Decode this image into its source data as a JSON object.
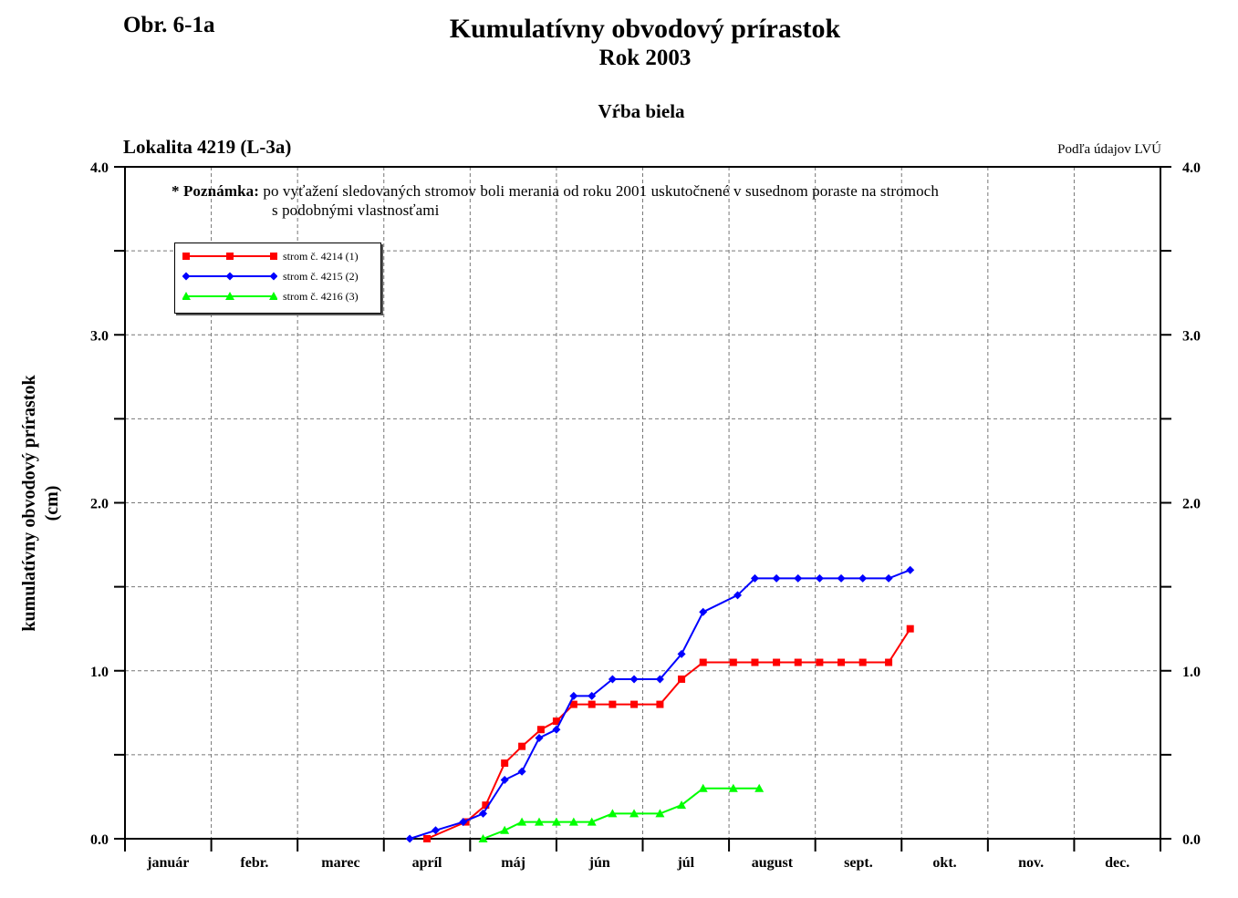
{
  "header": {
    "figure_label": "Obr. 6-1a",
    "title": "Kumulatívny obvodový prírastok",
    "subtitle": "Rok 2003",
    "species": "Vŕba biela",
    "location": "Lokalita 4219 (L-3a)",
    "source": "Podľa údajov LVÚ"
  },
  "note": {
    "head": "* Poznámka:",
    "line1": " po vyťažení sledovaných stromov boli merania od roku 2001 uskutočnené v susednom poraste na stromoch",
    "line2": "s podobnými vlastnosťami"
  },
  "chart_data": {
    "type": "line",
    "ylabel_line1": "kumulatívny obvodový prírastok",
    "ylabel_line2": "(cm)",
    "ylim": [
      0,
      4
    ],
    "y_ticks": [
      "0.0",
      "1.0",
      "2.0",
      "3.0",
      "4.0"
    ],
    "categories": [
      "január",
      "febr.",
      "marec",
      "apríl",
      "máj",
      "jún",
      "júl",
      "august",
      "sept.",
      "okt.",
      "nov.",
      "dec."
    ],
    "x_unit": "month index (1 = start of január, 13 = end of dec.)",
    "grid": true,
    "legend_position": "top-left",
    "series": [
      {
        "name": "strom č. 4214 (1)",
        "color": "#ff0000",
        "marker": "square",
        "points": [
          [
            4.5,
            0.0
          ],
          [
            4.95,
            0.1
          ],
          [
            5.18,
            0.2
          ],
          [
            5.4,
            0.45
          ],
          [
            5.6,
            0.55
          ],
          [
            5.82,
            0.65
          ],
          [
            6.0,
            0.7
          ],
          [
            6.2,
            0.8
          ],
          [
            6.41,
            0.8
          ],
          [
            6.65,
            0.8
          ],
          [
            6.9,
            0.8
          ],
          [
            7.2,
            0.8
          ],
          [
            7.45,
            0.95
          ],
          [
            7.7,
            1.05
          ],
          [
            8.05,
            1.05
          ],
          [
            8.3,
            1.05
          ],
          [
            8.55,
            1.05
          ],
          [
            8.8,
            1.05
          ],
          [
            9.05,
            1.05
          ],
          [
            9.3,
            1.05
          ],
          [
            9.55,
            1.05
          ],
          [
            9.85,
            1.05
          ],
          [
            10.1,
            1.25
          ]
        ]
      },
      {
        "name": "strom č. 4215 (2)",
        "color": "#0000ff",
        "marker": "diamond",
        "points": [
          [
            4.3,
            0.0
          ],
          [
            4.6,
            0.05
          ],
          [
            4.92,
            0.1
          ],
          [
            5.15,
            0.15
          ],
          [
            5.4,
            0.35
          ],
          [
            5.6,
            0.4
          ],
          [
            5.8,
            0.6
          ],
          [
            6.0,
            0.65
          ],
          [
            6.2,
            0.85
          ],
          [
            6.41,
            0.85
          ],
          [
            6.65,
            0.95
          ],
          [
            6.9,
            0.95
          ],
          [
            7.2,
            0.95
          ],
          [
            7.45,
            1.1
          ],
          [
            7.7,
            1.35
          ],
          [
            8.1,
            1.45
          ],
          [
            8.3,
            1.55
          ],
          [
            8.55,
            1.55
          ],
          [
            8.8,
            1.55
          ],
          [
            9.05,
            1.55
          ],
          [
            9.3,
            1.55
          ],
          [
            9.55,
            1.55
          ],
          [
            9.85,
            1.55
          ],
          [
            10.1,
            1.6
          ]
        ]
      },
      {
        "name": "strom č. 4216 (3)",
        "color": "#00ff00",
        "marker": "triangle",
        "points": [
          [
            5.15,
            0.0
          ],
          [
            5.4,
            0.05
          ],
          [
            5.6,
            0.1
          ],
          [
            5.8,
            0.1
          ],
          [
            6.0,
            0.1
          ],
          [
            6.2,
            0.1
          ],
          [
            6.41,
            0.1
          ],
          [
            6.65,
            0.15
          ],
          [
            6.9,
            0.15
          ],
          [
            7.2,
            0.15
          ],
          [
            7.45,
            0.2
          ],
          [
            7.7,
            0.3
          ],
          [
            8.05,
            0.3
          ],
          [
            8.35,
            0.3
          ]
        ]
      }
    ]
  }
}
